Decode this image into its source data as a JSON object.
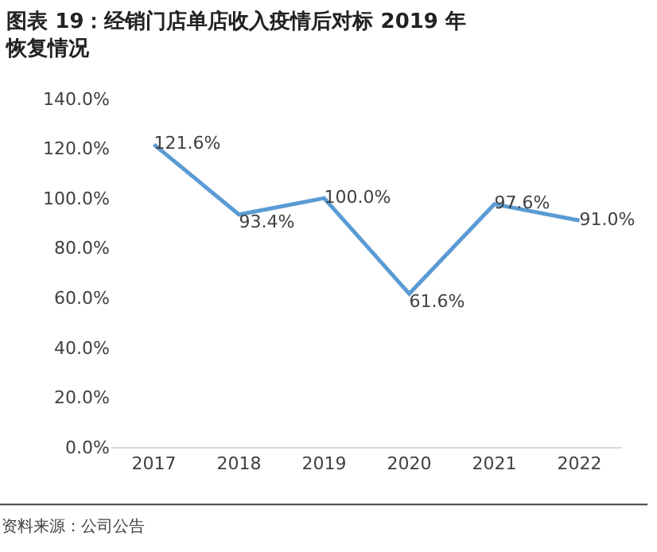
{
  "chart_data": {
    "type": "line",
    "title": "图表 19：经销门店单店收入疫情后对标 2019 年恢复情况",
    "categories": [
      "2017",
      "2018",
      "2019",
      "2020",
      "2021",
      "2022"
    ],
    "series": [
      {
        "color": "#5b9bd5",
        "values": [
          121.6,
          93.4,
          100.0,
          61.6,
          97.6,
          91.0
        ],
        "value_labels": [
          "121.6%",
          "93.4%",
          "100.0%",
          "61.6%",
          "97.6%",
          "91.0%"
        ]
      }
    ],
    "ylim": [
      0,
      140
    ],
    "yticks": [
      {
        "value": 0,
        "label": "0.0%"
      },
      {
        "value": 20,
        "label": "20.0%"
      },
      {
        "value": 40,
        "label": "40.0%"
      },
      {
        "value": 60,
        "label": "60.0%"
      },
      {
        "value": 80,
        "label": "80.0%"
      },
      {
        "value": 100,
        "label": "100.0%"
      },
      {
        "value": 120,
        "label": "120.0%"
      },
      {
        "value": 140,
        "label": "140.0%"
      }
    ],
    "marker": "none",
    "line_style": "solid",
    "annotations": [
      "资料来源：公司公告"
    ]
  }
}
